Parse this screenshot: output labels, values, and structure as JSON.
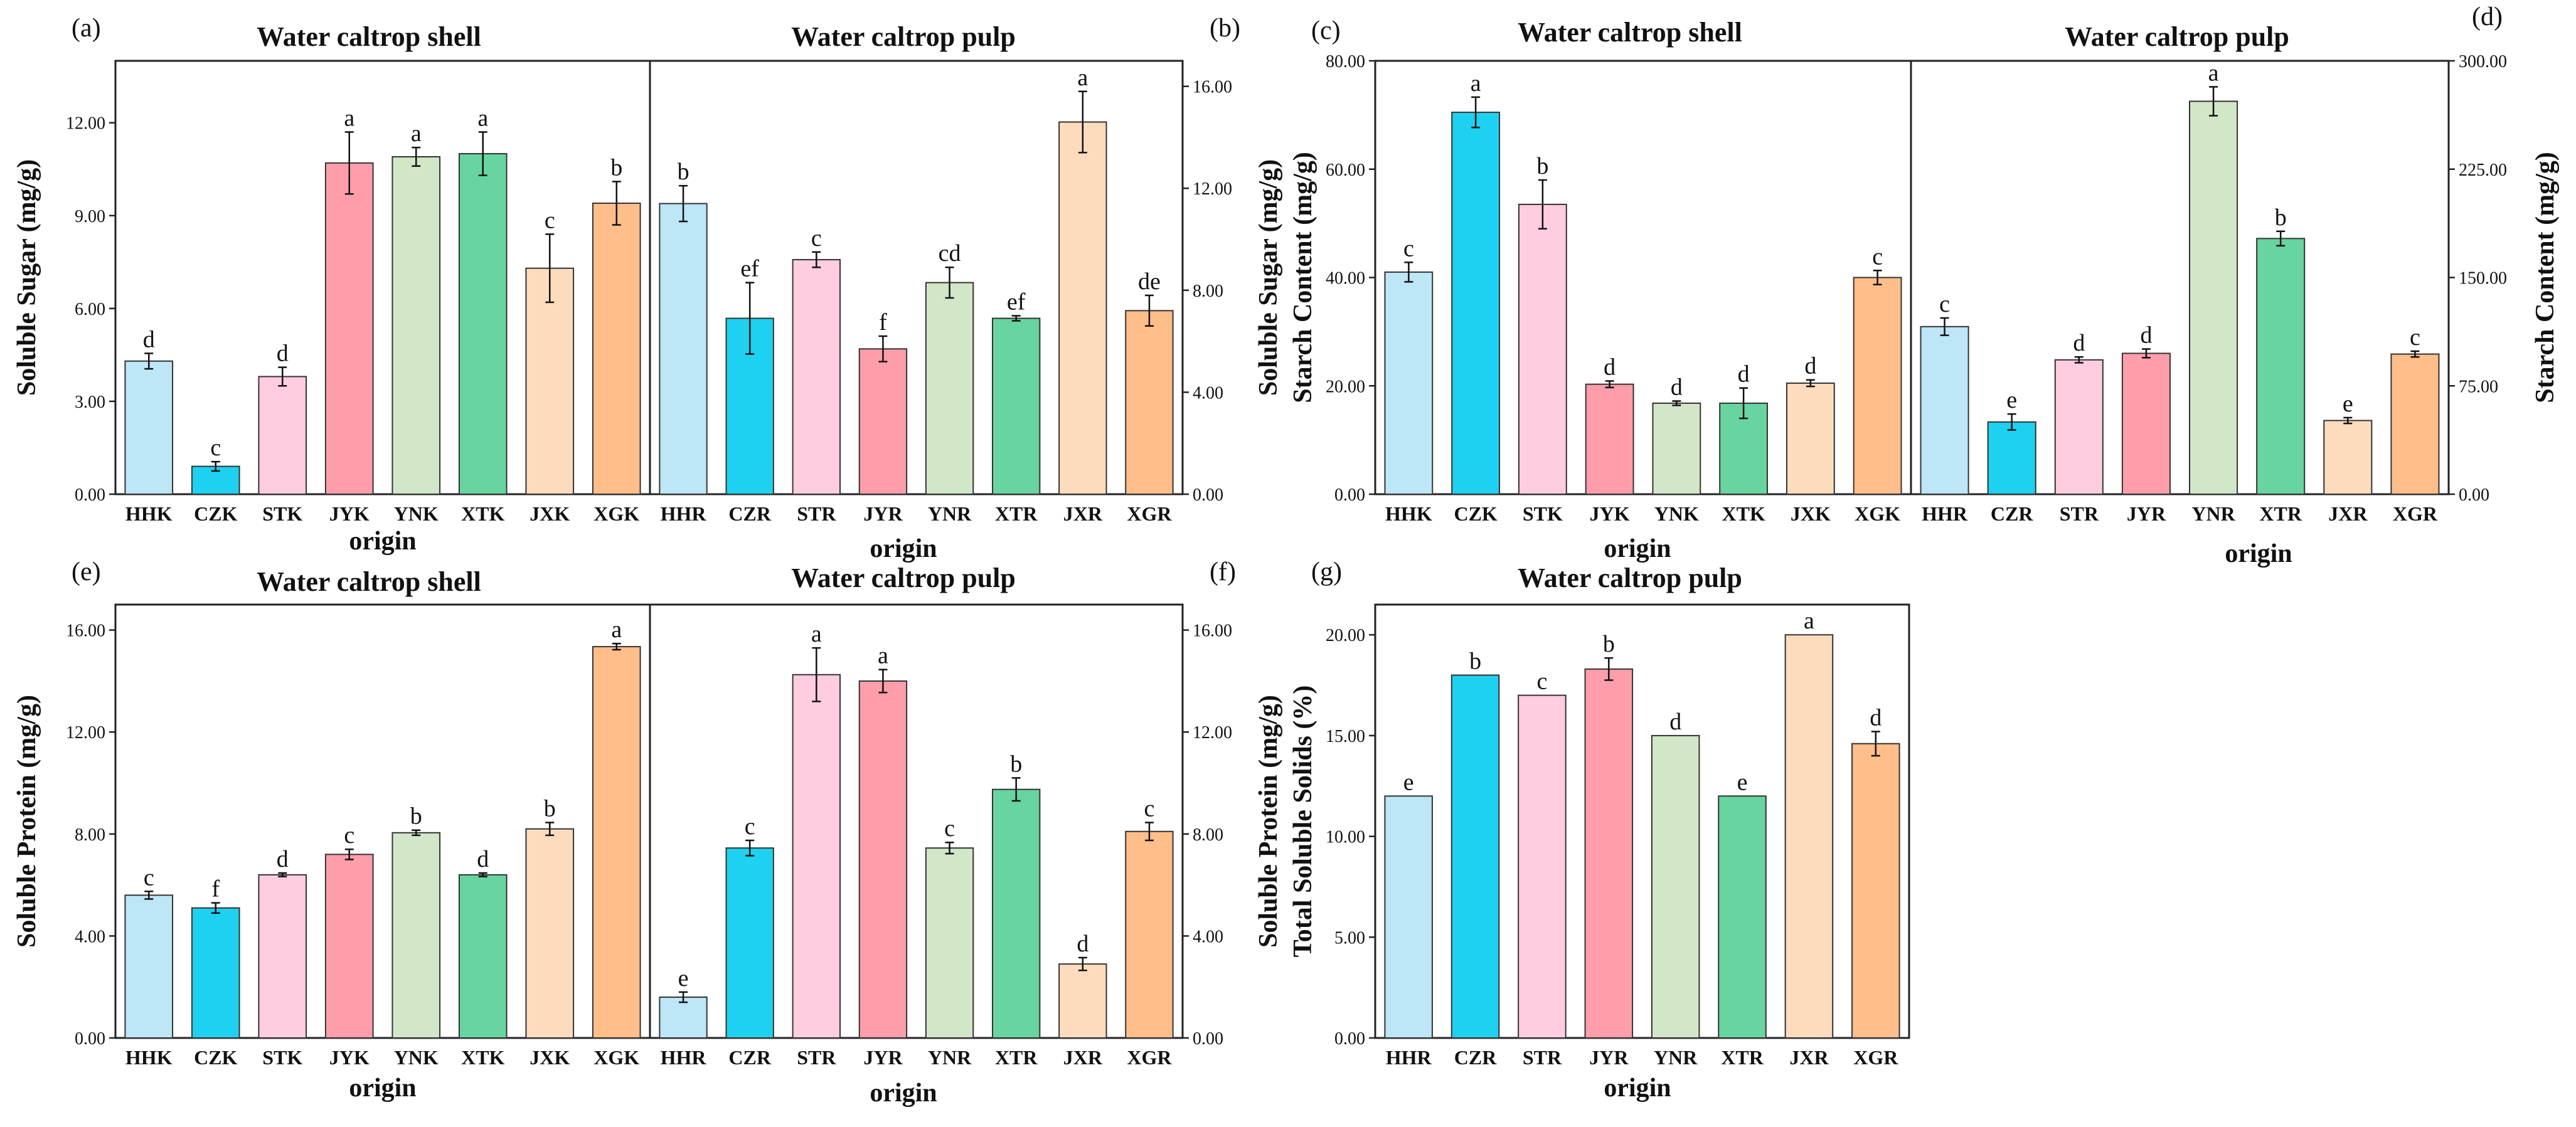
{
  "colors": {
    "HH": "#BDE6F7",
    "CZ": "#1ED1F0",
    "ST": "#FFCCE0",
    "JY": "#FF9EAB",
    "YN": "#D2E6C8",
    "XT": "#68D49F",
    "JX": "#FDDCBE",
    "XG": "#FFBE8A"
  },
  "chart_data": [
    {
      "id": "soluble-sugar",
      "type": "bar",
      "xlabel": "origin",
      "panels": [
        {
          "letter": "(a)",
          "title": "Water caltrop shell",
          "axis_side": "left",
          "ylabel": [
            "Soluble Sugar (mg/g)"
          ],
          "ylim": [
            0,
            14
          ],
          "yticks": [
            0,
            3,
            6,
            9,
            12
          ],
          "tick_labels": [
            "0.00",
            "3.00",
            "6.00",
            "9.00",
            "12.00"
          ],
          "categories": [
            "HHK",
            "CZK",
            "STK",
            "JYK",
            "YNK",
            "XTK",
            "JXK",
            "XGK"
          ],
          "color_keys": [
            "HH",
            "CZ",
            "ST",
            "JY",
            "YN",
            "XT",
            "JX",
            "XG"
          ],
          "values": [
            4.3,
            0.9,
            3.8,
            10.7,
            10.9,
            11.0,
            7.3,
            9.4
          ],
          "errors": [
            0.25,
            0.15,
            0.3,
            1.0,
            0.3,
            0.7,
            1.1,
            0.7
          ],
          "labels": [
            "d",
            "c",
            "d",
            "a",
            "a",
            "a",
            "c",
            "b"
          ]
        },
        {
          "letter": "(b)",
          "title": "Water caltrop pulp",
          "axis_side": "right",
          "ylabel": [],
          "ylim": [
            0,
            17
          ],
          "yticks": [
            0,
            4,
            8,
            12,
            16
          ],
          "tick_labels": [
            "0.00",
            "4.00",
            "8.00",
            "12.00",
            "16.00"
          ],
          "categories": [
            "HHR",
            "CZR",
            "STR",
            "JYR",
            "YNR",
            "XTR",
            "JXR",
            "XGR"
          ],
          "color_keys": [
            "HH",
            "CZ",
            "ST",
            "JY",
            "YN",
            "XT",
            "JX",
            "XG"
          ],
          "values": [
            11.4,
            6.9,
            9.2,
            5.7,
            8.3,
            6.9,
            14.6,
            7.2
          ],
          "errors": [
            0.7,
            1.4,
            0.3,
            0.5,
            0.6,
            0.1,
            1.2,
            0.6
          ],
          "labels": [
            "b",
            "ef",
            "c",
            "f",
            "cd",
            "ef",
            "a",
            "de"
          ]
        }
      ]
    },
    {
      "id": "starch-content",
      "type": "bar",
      "xlabel": "origin",
      "panels": [
        {
          "letter": "(c)",
          "title": "Water caltrop shell",
          "axis_side": "left",
          "ylabel": [
            "Soluble Sugar (mg/g)",
            "Starch Content (mg/g)"
          ],
          "ylim": [
            0,
            80
          ],
          "yticks": [
            0,
            20,
            40,
            60,
            80
          ],
          "tick_labels": [
            "0.00",
            "20.00",
            "40.00",
            "60.00",
            "80.00"
          ],
          "categories": [
            "HHK",
            "CZK",
            "STK",
            "JYK",
            "YNK",
            "XTK",
            "JXK",
            "XGK"
          ],
          "color_keys": [
            "HH",
            "CZ",
            "ST",
            "JY",
            "YN",
            "XT",
            "JX",
            "XG"
          ],
          "values": [
            41,
            70.5,
            53.5,
            20.3,
            16.8,
            16.8,
            20.5,
            40
          ],
          "errors": [
            1.8,
            2.8,
            4.5,
            0.6,
            0.4,
            2.8,
            0.6,
            1.3
          ],
          "labels": [
            "c",
            "a",
            "b",
            "d",
            "d",
            "d",
            "d",
            "c"
          ]
        },
        {
          "letter": "(d)",
          "title": "Water caltrop pulp",
          "axis_side": "right",
          "ylabel": [
            "Starch Content (mg/g)"
          ],
          "ylim": [
            0,
            300
          ],
          "yticks": [
            0,
            75,
            150,
            225,
            300
          ],
          "tick_labels": [
            "0.00",
            "75.00",
            "150.00",
            "225.00",
            "300.00"
          ],
          "categories": [
            "HHR",
            "CZR",
            "STR",
            "JYR",
            "YNR",
            "XTR",
            "JXR",
            "XGR"
          ],
          "color_keys": [
            "HH",
            "CZ",
            "ST",
            "JY",
            "YN",
            "XT",
            "JX",
            "XG"
          ],
          "values": [
            116,
            50,
            93,
            97.5,
            272,
            177,
            51,
            97
          ],
          "errors": [
            6,
            5.5,
            2,
            3,
            10,
            5,
            2,
            2
          ],
          "labels": [
            "c",
            "e",
            "d",
            "d",
            "a",
            "b",
            "e",
            "c"
          ]
        }
      ]
    },
    {
      "id": "soluble-protein",
      "type": "bar",
      "xlabel": "origin",
      "panels": [
        {
          "letter": "(e)",
          "title": "Water caltrop shell",
          "axis_side": "left",
          "ylabel": [
            "Soluble Protein (mg/g)"
          ],
          "ylim": [
            0,
            17
          ],
          "yticks": [
            0,
            4,
            8,
            12,
            16
          ],
          "tick_labels": [
            "0.00",
            "4.00",
            "8.00",
            "12.00",
            "16.00"
          ],
          "categories": [
            "HHK",
            "CZK",
            "STK",
            "JYK",
            "YNK",
            "XTK",
            "JXK",
            "XGK"
          ],
          "color_keys": [
            "HH",
            "CZ",
            "ST",
            "JY",
            "YN",
            "XT",
            "JX",
            "XG"
          ],
          "values": [
            5.6,
            5.1,
            6.4,
            7.2,
            8.05,
            6.4,
            8.2,
            15.35
          ],
          "errors": [
            0.15,
            0.2,
            0.07,
            0.2,
            0.1,
            0.07,
            0.25,
            0.12
          ],
          "labels": [
            "c",
            "f",
            "d",
            "c",
            "b",
            "d",
            "b",
            "a"
          ]
        },
        {
          "letter": "(f)",
          "title": "Water caltrop pulp",
          "axis_side": "right",
          "ylabel": [],
          "ylim": [
            0,
            17
          ],
          "yticks": [
            0,
            4,
            8,
            12,
            16
          ],
          "tick_labels": [
            "0.00",
            "4.00",
            "8.00",
            "12.00",
            "16.00"
          ],
          "categories": [
            "HHR",
            "CZR",
            "STR",
            "JYR",
            "YNR",
            "XTR",
            "JXR",
            "XGR"
          ],
          "color_keys": [
            "HH",
            "CZ",
            "ST",
            "JY",
            "YN",
            "XT",
            "JX",
            "XG"
          ],
          "values": [
            1.6,
            7.45,
            14.25,
            14.0,
            7.45,
            9.75,
            2.9,
            8.1
          ],
          "errors": [
            0.2,
            0.3,
            1.05,
            0.45,
            0.22,
            0.45,
            0.25,
            0.35
          ],
          "labels": [
            "e",
            "c",
            "a",
            "a",
            "c",
            "b",
            "d",
            "c"
          ]
        }
      ]
    },
    {
      "id": "total-soluble-solids",
      "type": "bar",
      "xlabel": "origin",
      "panels": [
        {
          "letter": "(g)",
          "title": "Water caltrop pulp",
          "axis_side": "left",
          "ylabel": [
            "Soluble Protein (mg/g)",
            "Total Soluble Solids (%)"
          ],
          "ylim": [
            0,
            21.5
          ],
          "yticks": [
            0,
            5,
            10,
            15,
            20
          ],
          "tick_labels": [
            "0.00",
            "5.00",
            "10.00",
            "15.00",
            "20.00"
          ],
          "categories": [
            "HHR",
            "CZR",
            "STR",
            "JYR",
            "YNR",
            "XTR",
            "JXR",
            "XGR"
          ],
          "color_keys": [
            "HH",
            "CZ",
            "ST",
            "JY",
            "YN",
            "XT",
            "JX",
            "XG"
          ],
          "values": [
            12,
            18,
            17,
            18.3,
            15,
            12,
            20,
            14.6
          ],
          "errors": [
            0,
            0,
            0,
            0.55,
            0,
            0,
            0,
            0.6
          ],
          "labels": [
            "e",
            "b",
            "c",
            "b",
            "d",
            "e",
            "a",
            "d"
          ]
        }
      ]
    }
  ]
}
